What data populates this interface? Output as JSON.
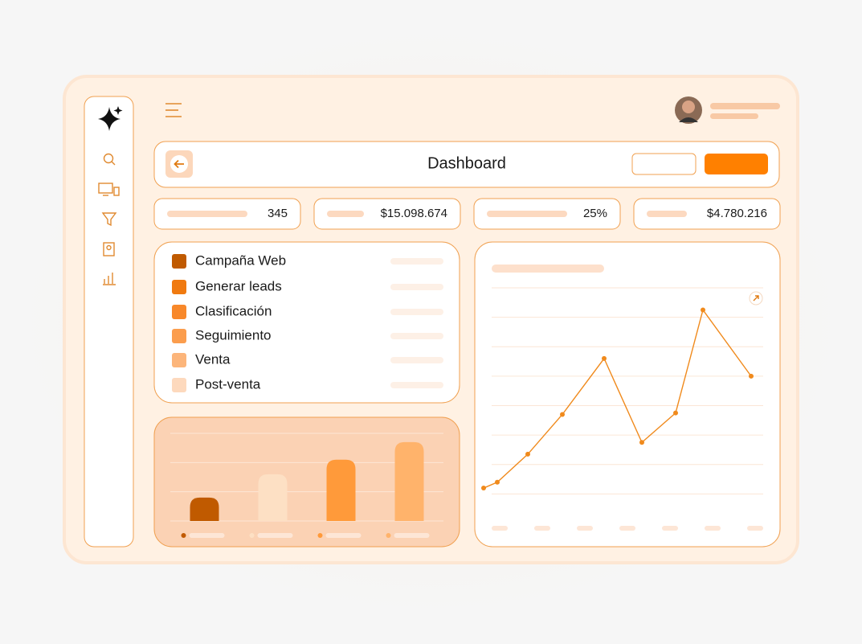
{
  "header": {
    "title": "Dashboard"
  },
  "stats": [
    "345",
    "$15.098.674",
    "25%",
    "$4.780.216"
  ],
  "steps": [
    "Campaña Web",
    "Generar leads",
    "Clasificación",
    "Seguimiento",
    "Venta",
    "Post-venta"
  ],
  "bar_chart": {
    "type": "bar",
    "values": [
      0.8,
      1.6,
      2.1,
      2.7
    ],
    "colors": [
      "#c05a00",
      "#fde0c4",
      "#ff9a3a",
      "#ffb36b"
    ],
    "ylim": [
      0,
      3
    ],
    "yticks": [
      0,
      1,
      2,
      3
    ],
    "grid": true
  },
  "line_chart": {
    "type": "line",
    "x": [
      0.2,
      1.9,
      5.7,
      10,
      15.2,
      19.9,
      24.1,
      27.5,
      33.5
    ],
    "values": [
      1.2,
      1.4,
      2.35,
      3.7,
      5.6,
      2.75,
      3.75,
      7.25,
      5.0
    ],
    "xlim": [
      0,
      35
    ],
    "ylim": [
      0,
      8
    ],
    "yticks": [
      1,
      2,
      3,
      4,
      5,
      6,
      7,
      8
    ],
    "grid": true,
    "color": "#f08a1c"
  }
}
